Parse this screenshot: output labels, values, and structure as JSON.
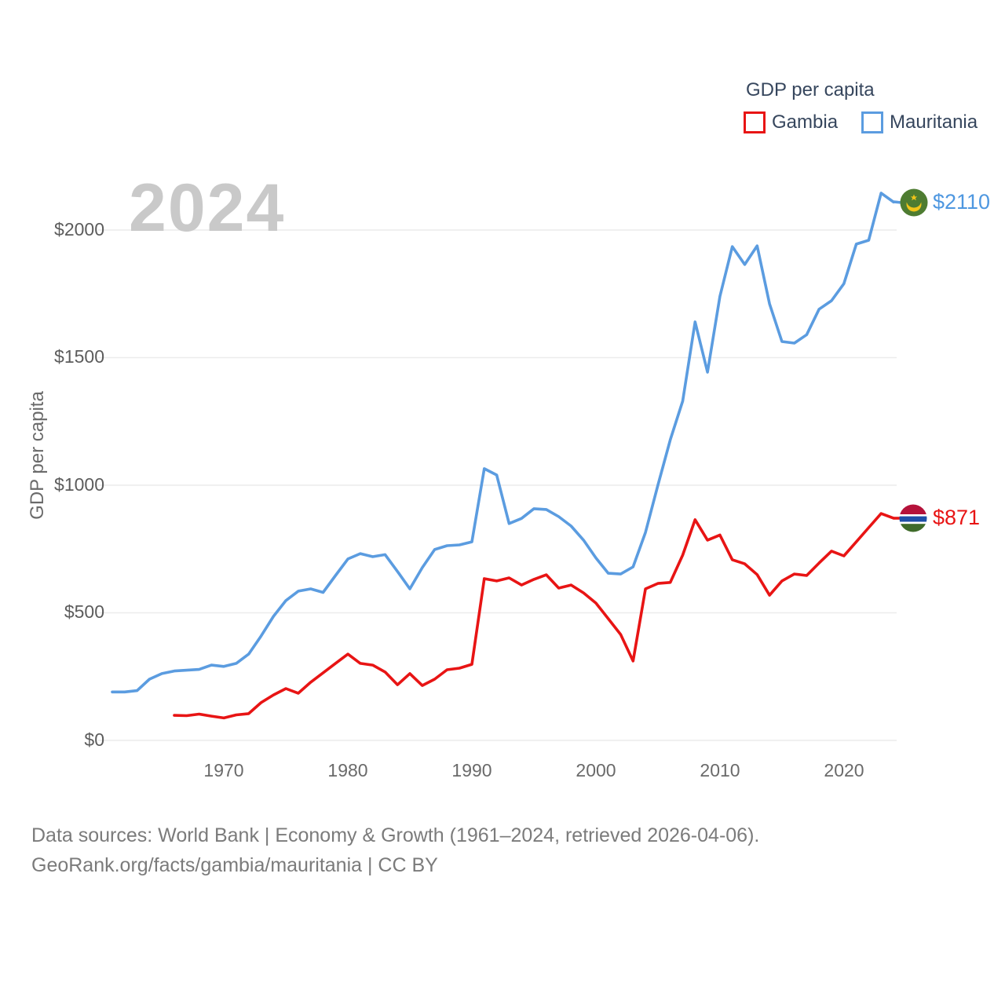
{
  "legend": {
    "title": "GDP per capita",
    "items": [
      {
        "label": "Gambia",
        "color": "#e81414"
      },
      {
        "label": "Mauritania",
        "color": "#5b9ce0"
      }
    ]
  },
  "watermark": "2024",
  "y_axis": {
    "label": "GDP per capita",
    "ticks": [
      "$0",
      "$500",
      "$1000",
      "$1500",
      "$2000"
    ]
  },
  "x_axis": {
    "ticks": [
      "1970",
      "1980",
      "1990",
      "2000",
      "2010",
      "2020"
    ]
  },
  "end_labels": {
    "mauritania": "$2110",
    "gambia": "$871"
  },
  "footer": {
    "line1": "Data sources: World Bank | Economy & Growth (1961–2024, retrieved 2026-04-06).",
    "line2": "GeoRank.org/facts/gambia/mauritania | CC BY"
  },
  "chart_data": {
    "type": "line",
    "title": "GDP per capita",
    "ylabel": "GDP per capita",
    "xlim": [
      1961,
      2024
    ],
    "ylim": [
      0,
      2200
    ],
    "y_gridlines": [
      0,
      500,
      1000,
      1500,
      2000
    ],
    "x_tick_years": [
      1970,
      1980,
      1990,
      2000,
      2010,
      2020
    ],
    "grid": true,
    "legend_position": "top-right",
    "series": [
      {
        "name": "Mauritania",
        "color": "#5b9ce0",
        "start_year": 1961,
        "end_year": 2024,
        "final_value": 2110,
        "values": [
          190,
          190,
          195,
          240,
          262,
          272,
          275,
          278,
          295,
          290,
          302,
          338,
          409,
          486,
          548,
          585,
          594,
          580,
          646,
          711,
          732,
          720,
          728,
          662,
          594,
          677,
          748,
          763,
          766,
          778,
          1065,
          1040,
          850,
          870,
          908,
          905,
          877,
          840,
          785,
          715,
          655,
          652,
          680,
          815,
          1000,
          1178,
          1330,
          1640,
          1443,
          1740,
          1935,
          1865,
          1938,
          1711,
          1563,
          1557,
          1590,
          1690,
          1723,
          1790,
          1945,
          1960,
          2145,
          2110
        ]
      },
      {
        "name": "Gambia",
        "color": "#e81414",
        "start_year": 1966,
        "end_year": 2024,
        "final_value": 871,
        "values": [
          98,
          97,
          103,
          95,
          88,
          100,
          105,
          148,
          178,
          203,
          185,
          228,
          265,
          302,
          338,
          302,
          295,
          268,
          218,
          262,
          215,
          240,
          277,
          283,
          298,
          634,
          625,
          637,
          609,
          631,
          649,
          597,
          609,
          578,
          538,
          477,
          415,
          311,
          594,
          615,
          619,
          726,
          865,
          785,
          805,
          708,
          692,
          650,
          569,
          625,
          652,
          646,
          695,
          742,
          723,
          778,
          834,
          889,
          871
        ]
      }
    ]
  }
}
